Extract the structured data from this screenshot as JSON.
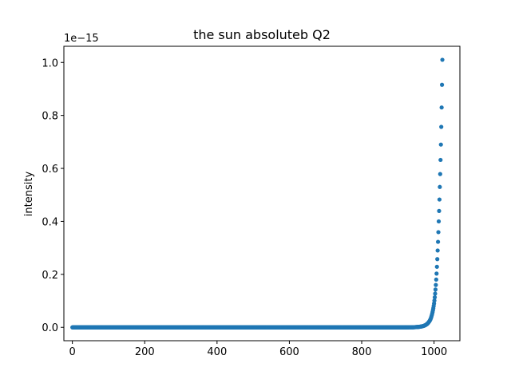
{
  "chart_data": {
    "type": "scatter",
    "title": "the sun absoluteb Q2",
    "xlabel": "",
    "ylabel": "intensity",
    "y_offset_label": "1e−15",
    "xlim": [
      -23.5,
      1071.5
    ],
    "ylim": [
      -0.0505,
      1.061
    ],
    "x_ticks": [
      0,
      200,
      400,
      600,
      800,
      1000
    ],
    "x_tick_labels": [
      "0",
      "200",
      "400",
      "600",
      "800",
      "1000"
    ],
    "y_ticks": [
      0.0,
      0.2,
      0.4,
      0.6,
      0.8,
      1.0
    ],
    "y_tick_labels": [
      "0.0",
      "0.2",
      "0.4",
      "0.6",
      "0.8",
      "1.0"
    ],
    "grid": false,
    "legend": "none",
    "color": "#1f77b4",
    "series": [
      {
        "x_range": [
          0,
          1023
        ],
        "curve": "exponential",
        "points": [
          {
            "x": 0,
            "y": 0.0
          },
          {
            "x": 900,
            "y": 0.0
          },
          {
            "x": 950,
            "y": 0.001
          },
          {
            "x": 970,
            "y": 0.005
          },
          {
            "x": 980,
            "y": 0.012
          },
          {
            "x": 990,
            "y": 0.03
          },
          {
            "x": 1000,
            "y": 0.09
          },
          {
            "x": 1005,
            "y": 0.16
          },
          {
            "x": 1010,
            "y": 0.29
          },
          {
            "x": 1013,
            "y": 0.4
          },
          {
            "x": 1016,
            "y": 0.53
          },
          {
            "x": 1019,
            "y": 0.69
          },
          {
            "x": 1021,
            "y": 0.83
          },
          {
            "x": 1023,
            "y": 1.01
          }
        ]
      }
    ]
  }
}
